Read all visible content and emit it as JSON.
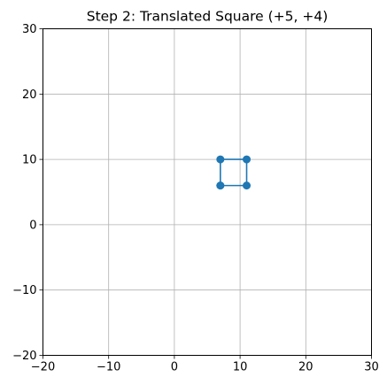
{
  "chart_data": {
    "type": "line",
    "title": "Step 2: Translated Square (+5, +4)",
    "xlabel": "",
    "ylabel": "",
    "xlim": [
      -20,
      30
    ],
    "ylim": [
      -20,
      30
    ],
    "xticks": [
      -20,
      -10,
      0,
      10,
      20,
      30
    ],
    "yticks": [
      -20,
      -10,
      0,
      10,
      20,
      30
    ],
    "xtick_labels": [
      "−20",
      "−10",
      "0",
      "10",
      "20",
      "30"
    ],
    "ytick_labels": [
      "−20",
      "−10",
      "0",
      "10",
      "20",
      "30"
    ],
    "grid": true,
    "legend": "none",
    "series": [
      {
        "x": [
          7,
          11,
          11,
          7,
          7
        ],
        "y": [
          6,
          6,
          10,
          10,
          6
        ],
        "marker": "circle",
        "color": "#1f77b4"
      }
    ],
    "colors": {
      "series": "#1f77b4",
      "grid": "#b0b0b0",
      "axis": "#000000"
    }
  }
}
